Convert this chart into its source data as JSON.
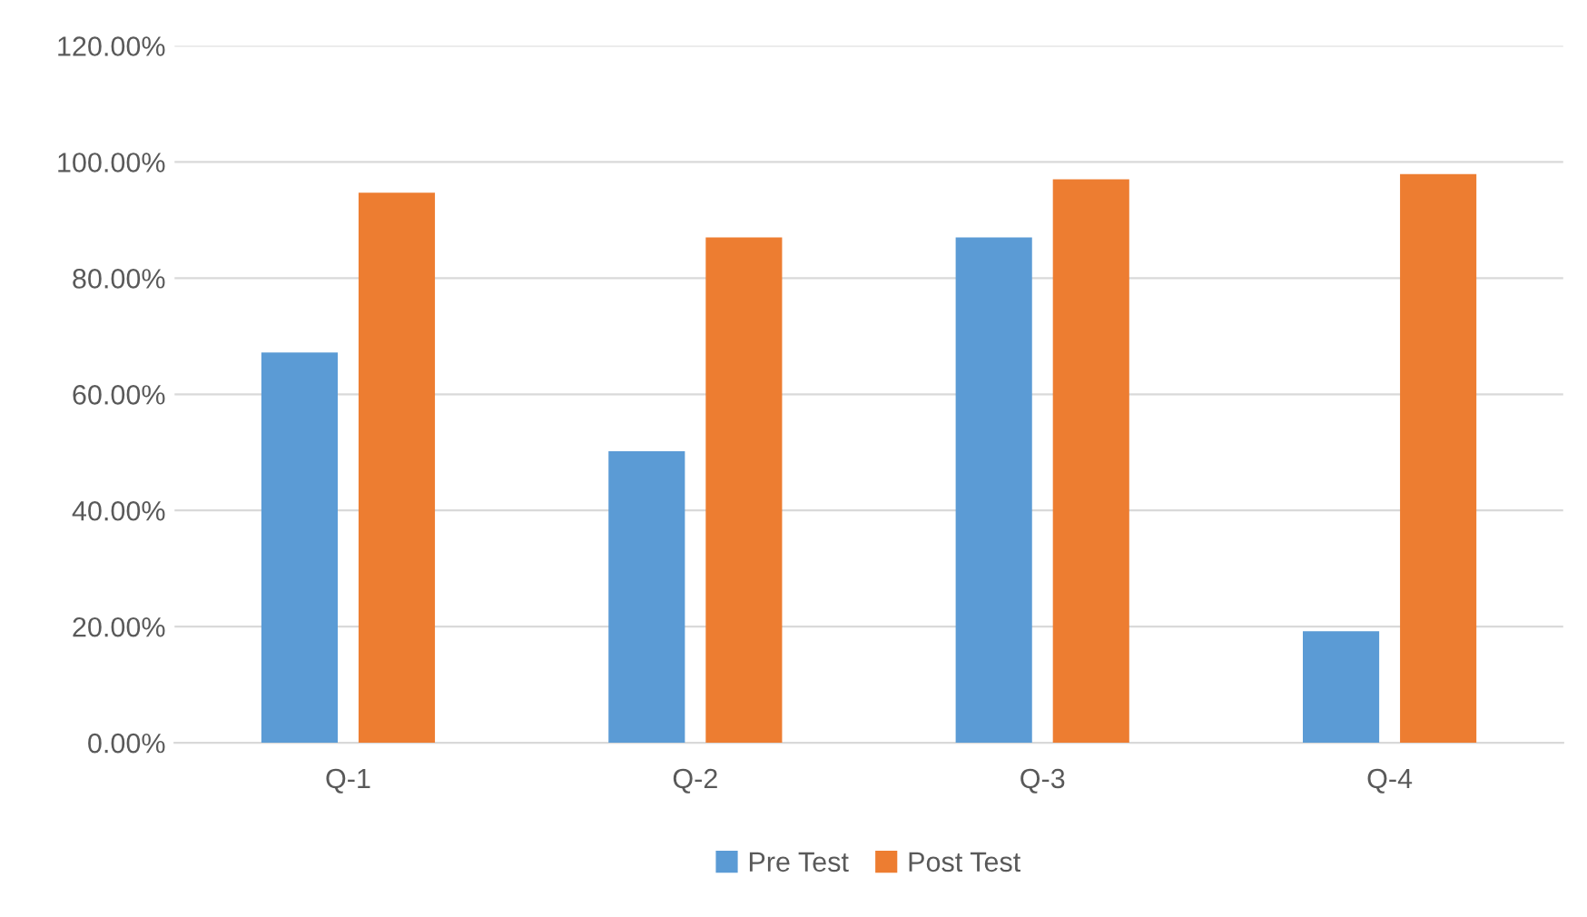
{
  "chart_data": {
    "type": "bar",
    "categories": [
      "Q-1",
      "Q-2",
      "Q-3",
      "Q-4"
    ],
    "series": [
      {
        "name": "Pre Test",
        "color": "#5b9bd5",
        "values": [
          67.2,
          50.2,
          87.0,
          19.2
        ]
      },
      {
        "name": "Post Test",
        "color": "#ed7d31",
        "values": [
          94.7,
          87.0,
          97.0,
          97.9
        ]
      }
    ],
    "ylim": [
      0,
      120
    ],
    "yticks": [
      {
        "value": 0,
        "label": "0.00%"
      },
      {
        "value": 20,
        "label": "20.00%"
      },
      {
        "value": 40,
        "label": "40.00%"
      },
      {
        "value": 60,
        "label": "60.00%"
      },
      {
        "value": 80,
        "label": "80.00%"
      },
      {
        "value": 100,
        "label": "100.00%"
      },
      {
        "value": 120,
        "label": "120.00%"
      }
    ],
    "grid": "y",
    "legend": "bottom"
  }
}
